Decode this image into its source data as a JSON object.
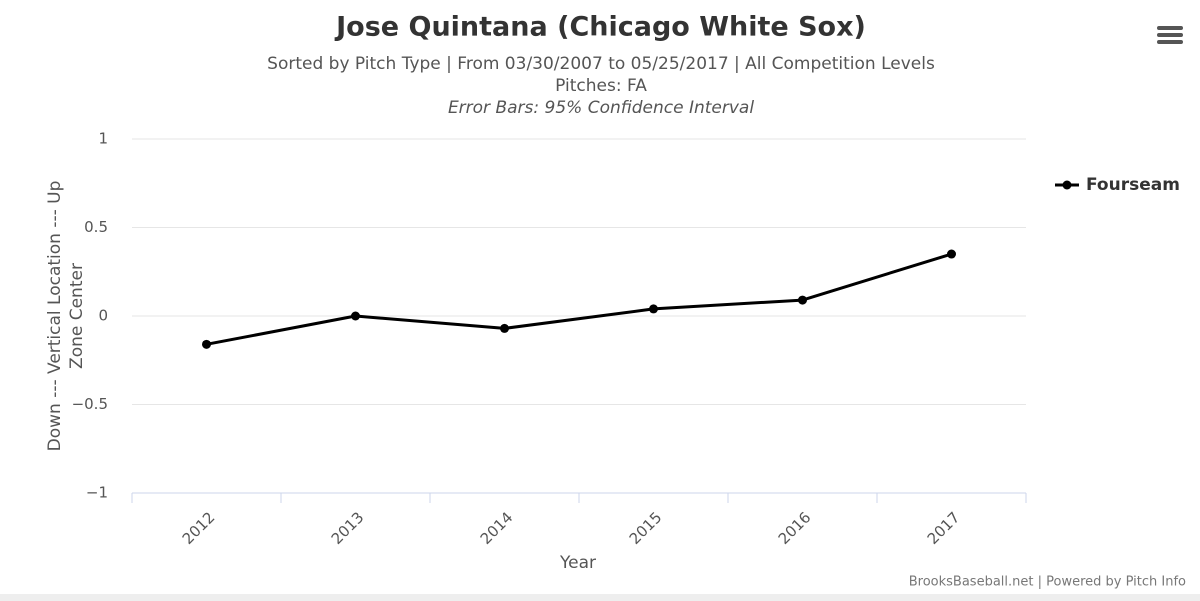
{
  "chart_data": {
    "type": "line",
    "title": "Jose Quintana (Chicago White Sox)",
    "subtitle": [
      "Sorted by Pitch Type | From 03/30/2007 to 05/25/2017 | All Competition Levels",
      "Pitches: FA",
      "Error Bars: 95% Confidence Interval"
    ],
    "x_label": "Year",
    "y_label": [
      "Down --- Vertical Location --- Up",
      "Zone Center"
    ],
    "categories": [
      "2012",
      "2013",
      "2014",
      "2015",
      "2016",
      "2017"
    ],
    "series": [
      {
        "name": "Fourseam",
        "color": "#000000",
        "values": [
          -0.16,
          0.0,
          -0.07,
          0.04,
          0.09,
          0.35
        ]
      }
    ],
    "ylim": [
      -1,
      1
    ],
    "yticks": [
      {
        "value": -1,
        "label": "−1"
      },
      {
        "value": -0.5,
        "label": "−0.5"
      },
      0,
      0.5,
      1
    ],
    "grid": true,
    "legend": "right",
    "credits": "BrooksBaseball.net | Powered by Pitch Info"
  }
}
